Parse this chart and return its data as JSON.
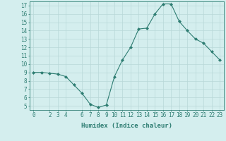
{
  "x": [
    0,
    1,
    2,
    3,
    4,
    5,
    6,
    7,
    8,
    9,
    10,
    11,
    12,
    13,
    14,
    15,
    16,
    17,
    18,
    19,
    20,
    21,
    22,
    23
  ],
  "y": [
    9.0,
    9.0,
    8.9,
    8.8,
    8.5,
    7.5,
    6.5,
    5.2,
    4.8,
    5.1,
    8.5,
    10.5,
    12.0,
    14.2,
    14.3,
    16.0,
    17.2,
    17.2,
    15.1,
    14.0,
    13.0,
    12.5,
    11.5,
    10.5
  ],
  "line_color": "#2e7d72",
  "marker": "D",
  "marker_size": 2.0,
  "bg_color": "#d4eeee",
  "grid_color": "#b8d8d8",
  "xlabel": "Humidex (Indice chaleur)",
  "xlim": [
    -0.5,
    23.5
  ],
  "ylim": [
    4.5,
    17.5
  ],
  "yticks": [
    5,
    6,
    7,
    8,
    9,
    10,
    11,
    12,
    13,
    14,
    15,
    16,
    17
  ],
  "xticks": [
    0,
    2,
    3,
    4,
    6,
    7,
    8,
    9,
    10,
    11,
    12,
    13,
    14,
    15,
    16,
    17,
    18,
    19,
    20,
    21,
    22,
    23
  ],
  "xtick_labels": [
    "0",
    "2",
    "3",
    "4",
    "6",
    "7",
    "8",
    "9",
    "10",
    "11",
    "12",
    "13",
    "14",
    "15",
    "16",
    "17",
    "18",
    "19",
    "20",
    "21",
    "22",
    "23"
  ],
  "font_size": 5.5,
  "xlabel_fontsize": 6.5
}
